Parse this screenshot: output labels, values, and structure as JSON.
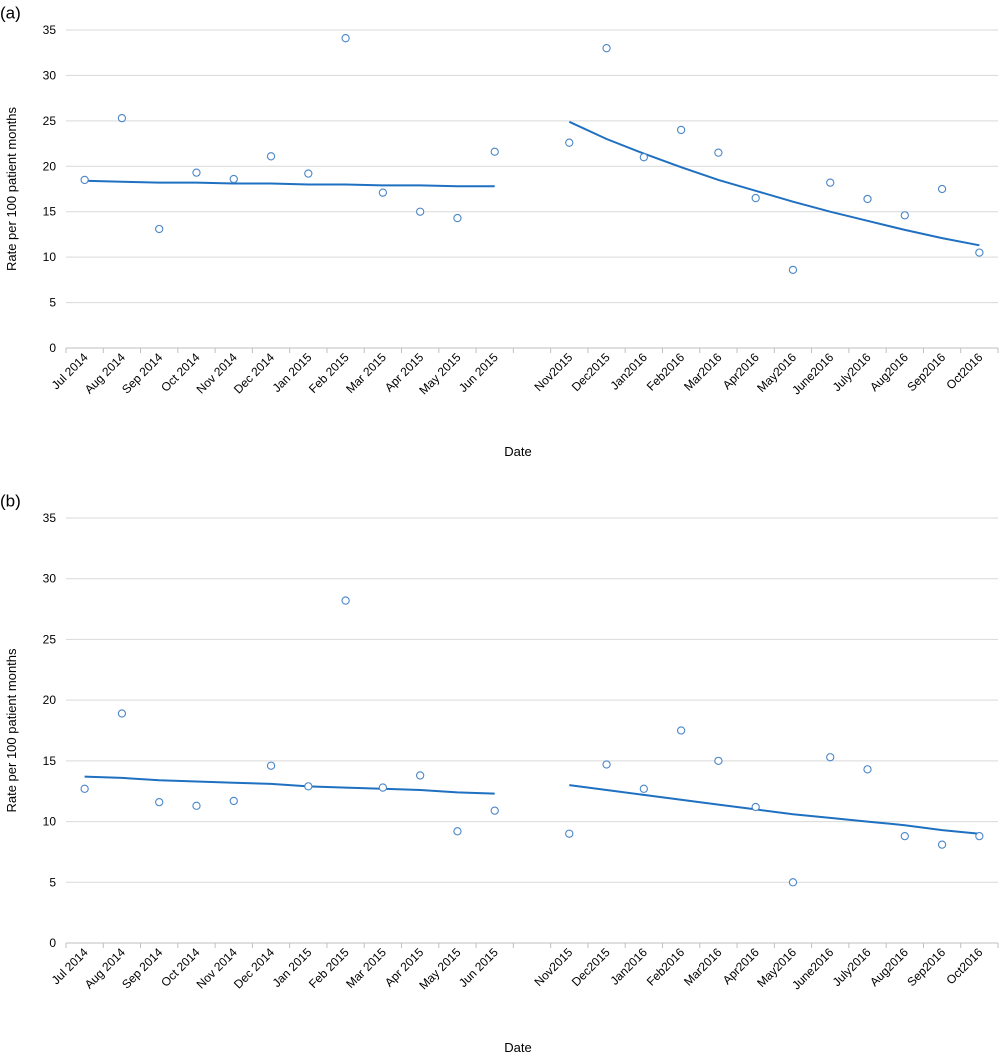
{
  "colors": {
    "series": "#1f70c1",
    "marker": "#4a86c8",
    "grid": "#d9d9d9",
    "axis": "#bfbfbf",
    "text": "#000000"
  },
  "chart_data": [
    {
      "panel_label": "(a)",
      "type": "scatter",
      "xlabel": "Date",
      "ylabel": "Rate per 100 patient months",
      "ylim": [
        0,
        35
      ],
      "yticks": [
        0,
        5,
        10,
        15,
        20,
        25,
        30,
        35
      ],
      "grid": true,
      "categories": [
        "Jul 2014",
        "Aug 2014",
        "Sep 2014",
        "Oct 2014",
        "Nov 2014",
        "Dec 2014",
        "Jan 2015",
        "Feb 2015",
        "Mar 2015",
        "Apr 2015",
        "May 2015",
        "Jun 2015",
        "",
        "Nov2015",
        "Dec2015",
        "Jan2016",
        "Feb2016",
        "Mar2016",
        "Apr2016",
        "May2016",
        "June2016",
        "July2016",
        "Aug2016",
        "Sep2016",
        "Oct2016"
      ],
      "series": [
        {
          "values": [
            18.5,
            25.3,
            13.1,
            19.3,
            18.6,
            21.1,
            19.2,
            34.1,
            17.1,
            15.0,
            14.3,
            21.6,
            null,
            22.6,
            33.0,
            21.0,
            24.0,
            21.5,
            16.5,
            8.6,
            18.2,
            16.4,
            14.6,
            17.5,
            10.5
          ]
        }
      ],
      "trendlines": [
        {
          "x": [
            0,
            1,
            2,
            3,
            4,
            5,
            6,
            7,
            8,
            9,
            10,
            11
          ],
          "y": [
            18.4,
            18.3,
            18.2,
            18.2,
            18.1,
            18.1,
            18.0,
            18.0,
            17.9,
            17.9,
            17.8,
            17.8
          ]
        },
        {
          "x": [
            13,
            14,
            15,
            16,
            17,
            18,
            19,
            20,
            21,
            22,
            23,
            24
          ],
          "y": [
            24.9,
            23.0,
            21.4,
            19.9,
            18.5,
            17.3,
            16.1,
            15.0,
            14.0,
            13.0,
            12.1,
            11.3
          ]
        }
      ]
    },
    {
      "panel_label": "(b)",
      "type": "scatter",
      "xlabel": "Date",
      "ylabel": "Rate per 100 patient months",
      "ylim": [
        0,
        35
      ],
      "yticks": [
        0,
        5,
        10,
        15,
        20,
        25,
        30,
        35
      ],
      "grid": true,
      "categories": [
        "Jul 2014",
        "Aug 2014",
        "Sep 2014",
        "Oct 2014",
        "Nov 2014",
        "Dec 2014",
        "Jan 2015",
        "Feb 2015",
        "Mar 2015",
        "Apr 2015",
        "May 2015",
        "Jun 2015",
        "",
        "Nov2015",
        "Dec2015",
        "Jan2016",
        "Feb2016",
        "Mar2016",
        "Apr2016",
        "May2016",
        "June2016",
        "July2016",
        "Aug2016",
        "Sep2016",
        "Oct2016"
      ],
      "series": [
        {
          "values": [
            12.7,
            18.9,
            11.6,
            11.3,
            11.7,
            14.6,
            12.9,
            28.2,
            12.8,
            13.8,
            9.2,
            10.9,
            null,
            9.0,
            14.7,
            12.7,
            17.5,
            15.0,
            11.2,
            5.0,
            15.3,
            14.3,
            8.8,
            8.1,
            8.8
          ]
        }
      ],
      "trendlines": [
        {
          "x": [
            0,
            1,
            2,
            3,
            4,
            5,
            6,
            7,
            8,
            9,
            10,
            11
          ],
          "y": [
            13.7,
            13.6,
            13.4,
            13.3,
            13.2,
            13.1,
            12.9,
            12.8,
            12.7,
            12.6,
            12.4,
            12.3
          ]
        },
        {
          "x": [
            13,
            14,
            15,
            16,
            17,
            18,
            19,
            20,
            21,
            22,
            23,
            24
          ],
          "y": [
            13.0,
            12.6,
            12.2,
            11.8,
            11.4,
            11.0,
            10.6,
            10.3,
            10.0,
            9.7,
            9.3,
            9.0
          ]
        }
      ]
    }
  ]
}
